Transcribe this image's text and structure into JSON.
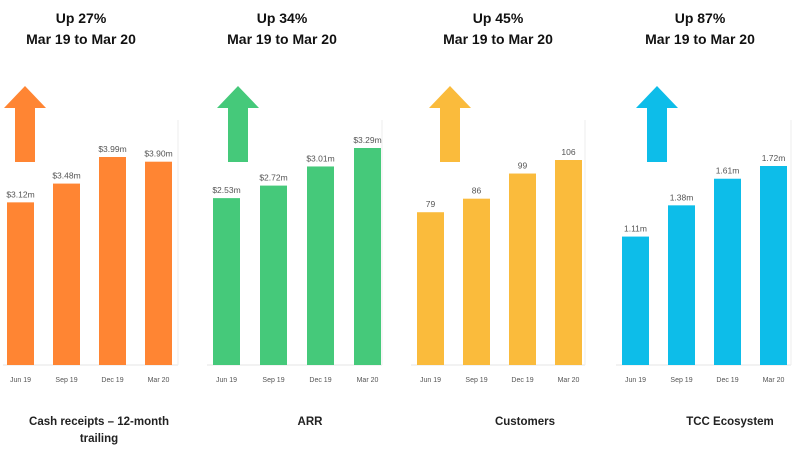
{
  "chart_data": [
    {
      "type": "bar",
      "headline": "Up 27%",
      "period": "Mar 19 to Mar 20",
      "title": "Cash receipts – 12-month trailing",
      "categories": [
        "Jun 19",
        "Sep 19",
        "Dec 19",
        "Mar 20"
      ],
      "values": [
        3.12,
        3.48,
        3.99,
        3.9
      ],
      "value_labels": [
        "$3.12m",
        "$3.48m",
        "$3.99m",
        "$3.90m"
      ],
      "color": "#FF8533"
    },
    {
      "type": "bar",
      "headline": "Up 34%",
      "period": "Mar 19 to Mar 20",
      "title": "ARR",
      "categories": [
        "Jun 19",
        "Sep 19",
        "Dec 19",
        "Mar 20"
      ],
      "values": [
        2.53,
        2.72,
        3.01,
        3.29
      ],
      "value_labels": [
        "$2.53m",
        "$2.72m",
        "$3.01m",
        "$3.29m"
      ],
      "color": "#45C97A"
    },
    {
      "type": "bar",
      "headline": "Up 45%",
      "period": "Mar 19 to Mar 20",
      "title": "Customers",
      "categories": [
        "Jun 19",
        "Sep 19",
        "Dec 19",
        "Mar 20"
      ],
      "values": [
        79,
        86,
        99,
        106
      ],
      "value_labels": [
        "79",
        "86",
        "99",
        "106"
      ],
      "color": "#FABB3C"
    },
    {
      "type": "bar",
      "headline": "Up 87%",
      "period": "Mar 19 to Mar 20",
      "title": "TCC Ecosystem",
      "categories": [
        "Jun 19",
        "Sep 19",
        "Dec 19",
        "Mar 20"
      ],
      "values": [
        1.11,
        1.38,
        1.61,
        1.72
      ],
      "value_labels": [
        "1.11m",
        "1.38m",
        "1.61m",
        "1.72m"
      ],
      "color": "#0DBDE9"
    }
  ]
}
